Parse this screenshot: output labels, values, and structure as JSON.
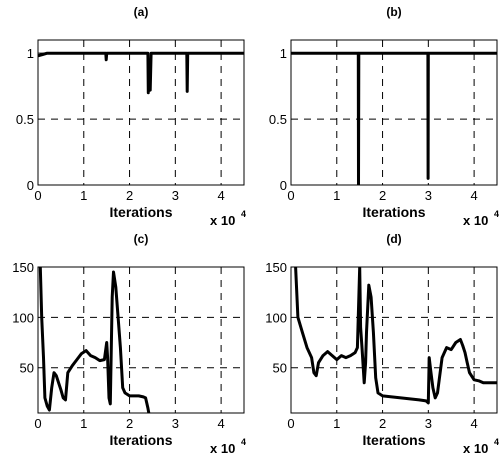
{
  "chart_data": [
    {
      "type": "line",
      "title": "(a)",
      "xlabel": "Iterations",
      "x_multiplier": {
        "base": "x 10",
        "exp": "4"
      },
      "xlim": [
        0,
        4.5
      ],
      "ylim": [
        0,
        1.1
      ],
      "xticks": [
        0,
        1,
        2,
        3,
        4
      ],
      "xtick_labels": [
        "0",
        "1",
        "2",
        "3",
        "4"
      ],
      "yticks": [
        0,
        0.5,
        1
      ],
      "ytick_labels": [
        "0",
        "0.5",
        "1"
      ],
      "grid": true,
      "series": [
        {
          "values": [
            [
              0,
              0.98
            ],
            [
              0.1,
              0.99
            ],
            [
              0.2,
              1.0
            ],
            [
              1.48,
              1.0
            ],
            [
              1.49,
              0.95
            ],
            [
              1.5,
              1.0
            ],
            [
              2.4,
              1.0
            ],
            [
              2.41,
              0.7
            ],
            [
              2.43,
              0.85
            ],
            [
              2.45,
              0.72
            ],
            [
              2.47,
              1.0
            ],
            [
              3.25,
              1.0
            ],
            [
              3.26,
              0.71
            ],
            [
              3.27,
              1.0
            ],
            [
              4.5,
              1.0
            ]
          ]
        }
      ]
    },
    {
      "type": "line",
      "title": "(b)",
      "xlabel": "Iterations",
      "x_multiplier": {
        "base": "x 10",
        "exp": "4"
      },
      "xlim": [
        0,
        4.5
      ],
      "ylim": [
        0,
        1.1
      ],
      "xticks": [
        0,
        1,
        2,
        3,
        4
      ],
      "xtick_labels": [
        "0",
        "1",
        "2",
        "3",
        "4"
      ],
      "yticks": [
        0,
        0.5,
        1
      ],
      "ytick_labels": [
        "0",
        "0.5",
        "1"
      ],
      "grid": true,
      "series": [
        {
          "values": [
            [
              0,
              1.0
            ],
            [
              1.47,
              1.0
            ],
            [
              1.475,
              0.0
            ],
            [
              1.48,
              1.0
            ],
            [
              2.99,
              1.0
            ],
            [
              2.995,
              0.05
            ],
            [
              3.0,
              1.0
            ],
            [
              4.5,
              1.0
            ]
          ]
        }
      ]
    },
    {
      "type": "line",
      "title": "(c)",
      "xlabel": "Iterations",
      "x_multiplier": {
        "base": "x 10",
        "exp": "4"
      },
      "xlim": [
        0,
        4.5
      ],
      "ylim": [
        5,
        150
      ],
      "xticks": [
        0,
        1,
        2,
        3,
        4
      ],
      "xtick_labels": [
        "0",
        "1",
        "2",
        "3",
        "4"
      ],
      "yticks": [
        50,
        100,
        150
      ],
      "ytick_labels": [
        "50",
        "100",
        "150"
      ],
      "grid": true,
      "series": [
        {
          "values": [
            [
              0.05,
              150
            ],
            [
              0.08,
              100
            ],
            [
              0.12,
              60
            ],
            [
              0.15,
              20
            ],
            [
              0.2,
              12
            ],
            [
              0.25,
              8
            ],
            [
              0.3,
              30
            ],
            [
              0.35,
              45
            ],
            [
              0.4,
              42
            ],
            [
              0.45,
              35
            ],
            [
              0.5,
              28
            ],
            [
              0.55,
              20
            ],
            [
              0.6,
              18
            ],
            [
              0.65,
              45
            ],
            [
              0.75,
              52
            ],
            [
              0.85,
              58
            ],
            [
              0.95,
              64
            ],
            [
              1.05,
              67
            ],
            [
              1.15,
              62
            ],
            [
              1.25,
              60
            ],
            [
              1.35,
              57
            ],
            [
              1.45,
              58
            ],
            [
              1.5,
              75
            ],
            [
              1.52,
              60
            ],
            [
              1.55,
              20
            ],
            [
              1.58,
              14
            ],
            [
              1.62,
              120
            ],
            [
              1.65,
              145
            ],
            [
              1.7,
              130
            ],
            [
              1.75,
              100
            ],
            [
              1.8,
              70
            ],
            [
              1.85,
              30
            ],
            [
              1.9,
              25
            ],
            [
              2.0,
              22
            ],
            [
              2.1,
              22
            ],
            [
              2.2,
              22
            ],
            [
              2.3,
              21
            ],
            [
              2.35,
              20
            ],
            [
              2.4,
              10
            ],
            [
              2.42,
              5
            ]
          ]
        }
      ]
    },
    {
      "type": "line",
      "title": "(d)",
      "xlabel": "Iterations",
      "x_multiplier": {
        "base": "x 10",
        "exp": "4"
      },
      "xlim": [
        0,
        4.5
      ],
      "ylim": [
        5,
        150
      ],
      "xticks": [
        0,
        1,
        2,
        3,
        4
      ],
      "xtick_labels": [
        "0",
        "1",
        "2",
        "3",
        "4"
      ],
      "yticks": [
        50,
        100,
        150
      ],
      "ytick_labels": [
        "50",
        "100",
        "150"
      ],
      "grid": true,
      "series": [
        {
          "values": [
            [
              0.1,
              150
            ],
            [
              0.15,
              100
            ],
            [
              0.25,
              85
            ],
            [
              0.35,
              70
            ],
            [
              0.45,
              60
            ],
            [
              0.5,
              45
            ],
            [
              0.55,
              42
            ],
            [
              0.6,
              55
            ],
            [
              0.7,
              62
            ],
            [
              0.8,
              66
            ],
            [
              0.9,
              62
            ],
            [
              1.0,
              58
            ],
            [
              1.1,
              62
            ],
            [
              1.2,
              60
            ],
            [
              1.3,
              62
            ],
            [
              1.4,
              65
            ],
            [
              1.45,
              70
            ],
            [
              1.5,
              150
            ],
            [
              1.52,
              90
            ],
            [
              1.55,
              70
            ],
            [
              1.6,
              35
            ],
            [
              1.63,
              55
            ],
            [
              1.65,
              85
            ],
            [
              1.7,
              132
            ],
            [
              1.75,
              120
            ],
            [
              1.8,
              85
            ],
            [
              1.85,
              40
            ],
            [
              1.9,
              25
            ],
            [
              2.0,
              22
            ],
            [
              2.2,
              21
            ],
            [
              2.4,
              20
            ],
            [
              2.6,
              19
            ],
            [
              2.8,
              18
            ],
            [
              2.95,
              17
            ],
            [
              3.0,
              15
            ],
            [
              3.02,
              60
            ],
            [
              3.05,
              48
            ],
            [
              3.1,
              30
            ],
            [
              3.15,
              20
            ],
            [
              3.2,
              25
            ],
            [
              3.3,
              60
            ],
            [
              3.4,
              70
            ],
            [
              3.5,
              68
            ],
            [
              3.6,
              75
            ],
            [
              3.7,
              78
            ],
            [
              3.75,
              72
            ],
            [
              3.8,
              65
            ],
            [
              3.85,
              55
            ],
            [
              3.9,
              45
            ],
            [
              4.0,
              38
            ],
            [
              4.1,
              37
            ],
            [
              4.2,
              35
            ],
            [
              4.3,
              35
            ],
            [
              4.5,
              35
            ]
          ]
        }
      ]
    }
  ]
}
